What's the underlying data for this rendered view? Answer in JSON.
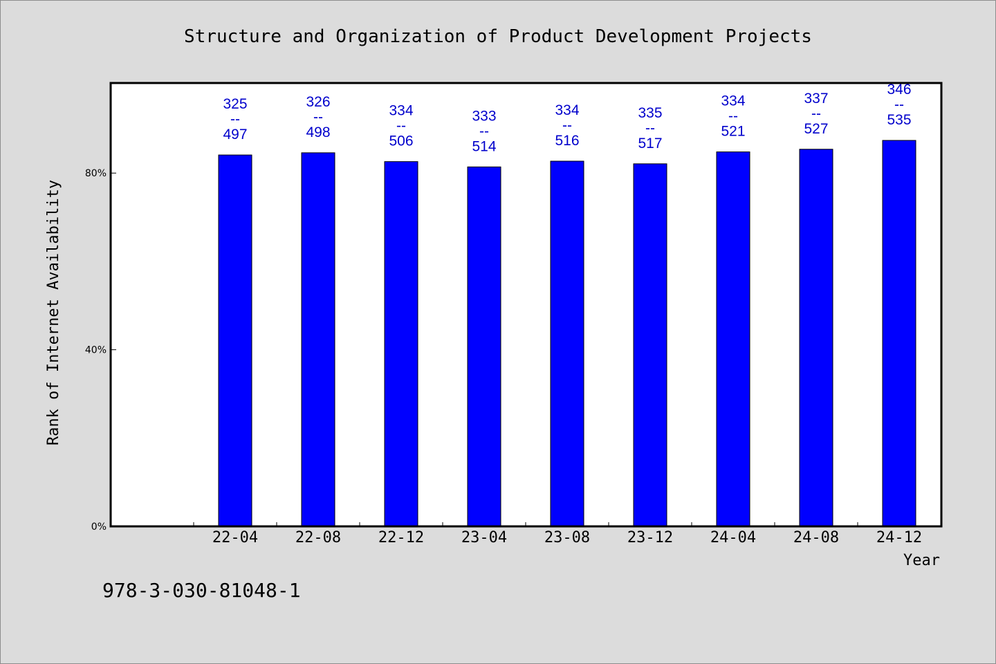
{
  "chart_data": {
    "type": "bar",
    "title": "Structure and Organization of Product Development Projects",
    "xlabel": "Year",
    "ylabel": "Rank of Internet Availability",
    "categories": [
      "22-04",
      "22-08",
      "22-12",
      "23-04",
      "23-08",
      "23-12",
      "24-04",
      "24-08",
      "24-12"
    ],
    "values": [
      84.1,
      84.6,
      82.6,
      81.4,
      82.7,
      82.1,
      84.8,
      85.4,
      87.4
    ],
    "bar_labels": [
      {
        "top": "325",
        "sep": "--",
        "bottom": "497"
      },
      {
        "top": "326",
        "sep": "--",
        "bottom": "498"
      },
      {
        "top": "334",
        "sep": "--",
        "bottom": "506"
      },
      {
        "top": "333",
        "sep": "--",
        "bottom": "514"
      },
      {
        "top": "334",
        "sep": "--",
        "bottom": "516"
      },
      {
        "top": "335",
        "sep": "--",
        "bottom": "517"
      },
      {
        "top": "334",
        "sep": "--",
        "bottom": "521"
      },
      {
        "top": "337",
        "sep": "--",
        "bottom": "527"
      },
      {
        "top": "346",
        "sep": "--",
        "bottom": "535"
      }
    ],
    "y_ticks": [
      {
        "value": 0,
        "label": "0%"
      },
      {
        "value": 40,
        "label": "40%"
      },
      {
        "value": 80,
        "label": "80%"
      }
    ],
    "ylim": [
      0,
      100.4
    ],
    "grid": false,
    "bar_color": "#0000ff",
    "label_color": "#0000cc"
  },
  "footer": {
    "isbn": "978-3-030-81048-1"
  }
}
